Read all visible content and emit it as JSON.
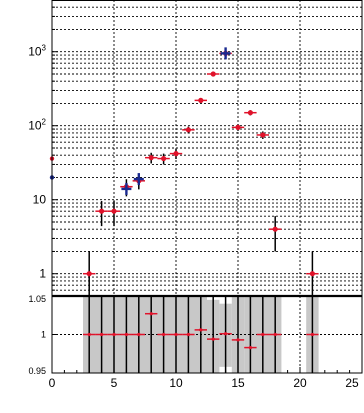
{
  "chart_data": [
    {
      "type": "scatter",
      "panel": "top",
      "title": "",
      "xlabel": "",
      "ylabel": "",
      "yscale": "log",
      "xlim": [
        0,
        25
      ],
      "ylim": [
        0.5,
        5000
      ],
      "grid": true,
      "grid_style": "dotted",
      "y_tick_labels": [
        "1",
        "10",
        "10^2",
        "10^3"
      ],
      "series": [
        {
          "marker": "red-dot",
          "color": "#e0122a",
          "points": [
            {
              "x": 3,
              "y": 1,
              "yerr": 1
            },
            {
              "x": 4,
              "y": 7,
              "yerr": 2.6
            },
            {
              "x": 5,
              "y": 7,
              "yerr": 2.6
            },
            {
              "x": 6,
              "y": 15,
              "yerr": 3.9
            },
            {
              "x": 7,
              "y": 18,
              "yerr": 4.2
            },
            {
              "x": 8,
              "y": 37,
              "yerr": 6.1
            },
            {
              "x": 9,
              "y": 36,
              "yerr": 6
            },
            {
              "x": 10,
              "y": 42,
              "yerr": 6.5
            },
            {
              "x": 11,
              "y": 88,
              "yerr": 9.4
            },
            {
              "x": 12,
              "y": 220,
              "yerr": 15
            },
            {
              "x": 13,
              "y": 500,
              "yerr": 22
            },
            {
              "x": 14,
              "y": 950,
              "yerr": 31
            },
            {
              "x": 15,
              "y": 95,
              "yerr": 9.7
            },
            {
              "x": 16,
              "y": 150,
              "yerr": 12
            },
            {
              "x": 17,
              "y": 75,
              "yerr": 8.7
            },
            {
              "x": 18,
              "y": 4,
              "yerr": 2
            },
            {
              "x": 21,
              "y": 1,
              "yerr": 1
            }
          ]
        },
        {
          "marker": "blue-cross",
          "color": "#1a2a8f",
          "points": [
            {
              "x": 6,
              "y": 14
            },
            {
              "x": 7,
              "y": 19
            },
            {
              "x": 14,
              "y": 950
            }
          ]
        }
      ]
    },
    {
      "type": "scatter",
      "panel": "ratio",
      "title": "",
      "xlabel": "",
      "ylabel": "",
      "xlim": [
        0,
        25
      ],
      "ylim": [
        0.95,
        1.05
      ],
      "grid": true,
      "x_tick_labels": [
        "0",
        "5",
        "10",
        "15",
        "20",
        "25"
      ],
      "y_tick_labels": [
        "0.95",
        "1",
        "1.05"
      ],
      "band_color": "#c8c8c8",
      "bands": [
        {
          "x0": 2.5,
          "x1": 12.5,
          "y0": 0.95,
          "y1": 1.05
        },
        {
          "x0": 12.5,
          "x1": 13.5,
          "y0": 0.95,
          "y1": 1.045
        },
        {
          "x0": 13.5,
          "x1": 14.5,
          "y0": 0.958,
          "y1": 1.04
        },
        {
          "x0": 14.5,
          "x1": 15.5,
          "y0": 0.95,
          "y1": 1.05
        },
        {
          "x0": 15.5,
          "x1": 18.5,
          "y0": 0.95,
          "y1": 1.05
        },
        {
          "x0": 20.5,
          "x1": 21.5,
          "y0": 0.95,
          "y1": 1.05
        }
      ],
      "points": [
        {
          "x": 3,
          "y": 1.0
        },
        {
          "x": 4,
          "y": 1.0
        },
        {
          "x": 5,
          "y": 1.0
        },
        {
          "x": 6,
          "y": 1.0
        },
        {
          "x": 7,
          "y": 1.0
        },
        {
          "x": 8,
          "y": 1.027
        },
        {
          "x": 9,
          "y": 1.0
        },
        {
          "x": 10,
          "y": 1.0
        },
        {
          "x": 11,
          "y": 1.0
        },
        {
          "x": 12,
          "y": 1.006
        },
        {
          "x": 13,
          "y": 0.994
        },
        {
          "x": 14,
          "y": 1.001
        },
        {
          "x": 15,
          "y": 0.993
        },
        {
          "x": 16,
          "y": 0.983
        },
        {
          "x": 17,
          "y": 1.0
        },
        {
          "x": 18,
          "y": 1.0
        },
        {
          "x": 21,
          "y": 1.0
        }
      ]
    }
  ]
}
